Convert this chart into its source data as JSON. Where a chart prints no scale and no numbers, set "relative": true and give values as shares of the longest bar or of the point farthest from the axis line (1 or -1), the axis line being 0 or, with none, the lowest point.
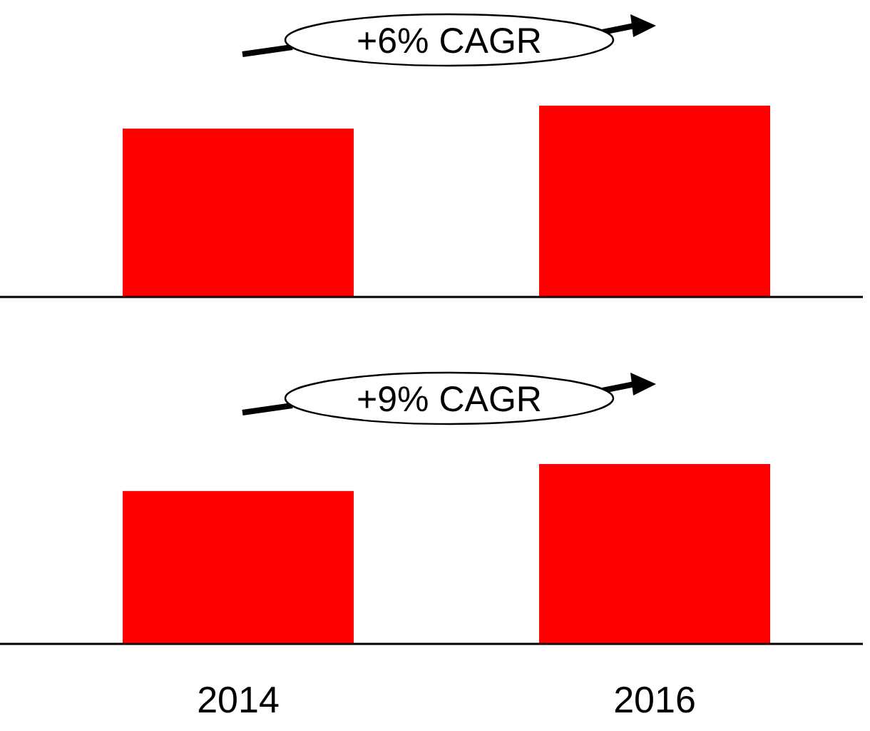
{
  "chart_data": [
    {
      "type": "bar",
      "categories": [
        null,
        null
      ],
      "values": [
        0.88,
        1
      ],
      "color": "#ff0000",
      "relative": true,
      "tick_labels": false,
      "annotations": [
        "+6% CAGR"
      ]
    },
    {
      "type": "bar",
      "categories": [
        "2014",
        "2016"
      ],
      "values": [
        0.85,
        1
      ],
      "color": "#ff0000",
      "relative": true,
      "tick_labels": "x",
      "annotations": [
        "+9% CAGR"
      ]
    }
  ]
}
